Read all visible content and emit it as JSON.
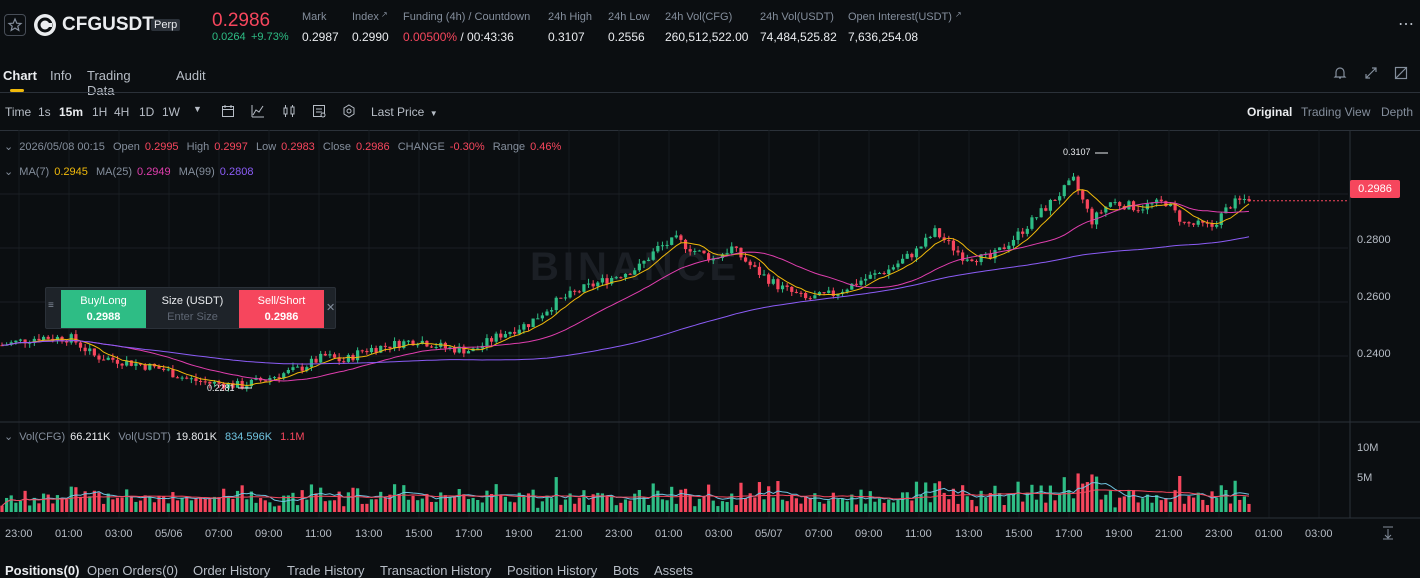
{
  "header": {
    "symbol": "CFGUSDT",
    "badge": "Perp",
    "last_price": "0.2986",
    "change_abs": "0.0264",
    "change_pct": "+9.73%",
    "stats": [
      {
        "label": "Mark",
        "value": "0.2987"
      },
      {
        "label": "Index",
        "value": "0.2990"
      },
      {
        "label": "Funding (4h) / Countdown",
        "value_rate": "0.00500%",
        "value_countdown": " / 00:43:36"
      },
      {
        "label": "24h High",
        "value": "0.3107"
      },
      {
        "label": "24h Low",
        "value": "0.2556"
      },
      {
        "label": "24h Vol(CFG)",
        "value": "260,512,522.00"
      },
      {
        "label": "24h Vol(USDT)",
        "value": "74,484,525.82"
      },
      {
        "label": "Open Interest(USDT)",
        "value": "7,636,254.08"
      }
    ]
  },
  "tabs": [
    "Chart",
    "Info",
    "Trading Data",
    "Audit"
  ],
  "toolbar": {
    "time_label": "Time",
    "intervals": [
      "1s",
      "15m",
      "1H",
      "4H",
      "1D",
      "1W"
    ],
    "active_interval": "15m",
    "price_type": "Last Price",
    "views": [
      "Original",
      "Trading View",
      "Depth"
    ],
    "active_view": "Original"
  },
  "legend": {
    "datetime": "2026/05/08 00:15",
    "open_label": "Open",
    "open": "0.2995",
    "high_label": "High",
    "high": "0.2997",
    "low_label": "Low",
    "low": "0.2983",
    "close_label": "Close",
    "close": "0.2986",
    "change_label": "CHANGE",
    "change": "-0.30%",
    "range_label": "Range",
    "range": "0.46%",
    "ma7_label": "MA(7)",
    "ma7": "0.2945",
    "ma25_label": "MA(25)",
    "ma25": "0.2949",
    "ma99_label": "MA(99)",
    "ma99": "0.2808",
    "vol_cfg_label": "Vol(CFG)",
    "vol_cfg": "66.211K",
    "vol_usdt_label": "Vol(USDT)",
    "vol_usdt": "19.801K",
    "vol_ma1": "834.596K",
    "vol_ma2": "1.1M"
  },
  "order_widget": {
    "buy_label": "Buy/Long",
    "buy_price": "0.2988",
    "size_label": "Size (USDT)",
    "size_placeholder": "Enter Size",
    "sell_label": "Sell/Short",
    "sell_price": "0.2986"
  },
  "price_axis": {
    "labels": [
      "0.2800",
      "0.2600",
      "0.2400"
    ],
    "current": "0.2986",
    "high_marker": "0.3107",
    "low_marker": "0.2281"
  },
  "volume_axis": {
    "labels": [
      "10M",
      "5M"
    ]
  },
  "time_axis": [
    "23:00",
    "01:00",
    "03:00",
    "05/06",
    "07:00",
    "09:00",
    "11:00",
    "13:00",
    "15:00",
    "17:00",
    "19:00",
    "21:00",
    "23:00",
    "01:00",
    "03:00",
    "05/07",
    "07:00",
    "09:00",
    "11:00",
    "13:00",
    "15:00",
    "17:00",
    "19:00",
    "21:00",
    "23:00",
    "01:00",
    "03:00"
  ],
  "bottom_tabs": [
    "Positions(0)",
    "Open Orders(0)",
    "Order History",
    "Trade History",
    "Transaction History",
    "Position History",
    "Bots",
    "Assets"
  ],
  "watermark": "BINANCE",
  "colors": {
    "up": "#2ebd85",
    "down": "#f6465d",
    "accent": "#f0b90b",
    "ma7": "#f0b90b",
    "ma25": "#e03eae",
    "ma99": "#8b5cf6"
  },
  "chart_data": {
    "type": "candlestick",
    "interval": "15m",
    "price_range": [
      0.22,
      0.32
    ],
    "price_ticks": [
      0.28,
      0.26,
      0.24
    ],
    "close_path": [
      [
        0,
        0.244
      ],
      [
        8,
        0.247
      ],
      [
        15,
        0.2465
      ],
      [
        20,
        0.24
      ],
      [
        28,
        0.2375
      ],
      [
        35,
        0.235
      ],
      [
        40,
        0.2315
      ],
      [
        45,
        0.23
      ],
      [
        52,
        0.229
      ],
      [
        58,
        0.232
      ],
      [
        64,
        0.235
      ],
      [
        70,
        0.24
      ],
      [
        74,
        0.238
      ],
      [
        78,
        0.242
      ],
      [
        84,
        0.244
      ],
      [
        90,
        0.246
      ],
      [
        96,
        0.243
      ],
      [
        102,
        0.242
      ],
      [
        108,
        0.248
      ],
      [
        114,
        0.252
      ],
      [
        120,
        0.26
      ],
      [
        126,
        0.265
      ],
      [
        132,
        0.269
      ],
      [
        138,
        0.273
      ],
      [
        142,
        0.28
      ],
      [
        146,
        0.283
      ],
      [
        150,
        0.279
      ],
      [
        154,
        0.276
      ],
      [
        158,
        0.28
      ],
      [
        163,
        0.272
      ],
      [
        168,
        0.266
      ],
      [
        174,
        0.261
      ],
      [
        180,
        0.263
      ],
      [
        186,
        0.268
      ],
      [
        192,
        0.272
      ],
      [
        198,
        0.279
      ],
      [
        202,
        0.286
      ],
      [
        208,
        0.277
      ],
      [
        214,
        0.276
      ],
      [
        220,
        0.285
      ],
      [
        226,
        0.295
      ],
      [
        232,
        0.305
      ],
      [
        236,
        0.29
      ],
      [
        240,
        0.297
      ],
      [
        246,
        0.295
      ],
      [
        252,
        0.297
      ],
      [
        256,
        0.289
      ],
      [
        262,
        0.288
      ],
      [
        266,
        0.296
      ],
      [
        270,
        0.2986
      ]
    ],
    "volume_range": [
      0,
      13000000
    ],
    "volume_ticks": [
      10000000,
      5000000
    ]
  }
}
